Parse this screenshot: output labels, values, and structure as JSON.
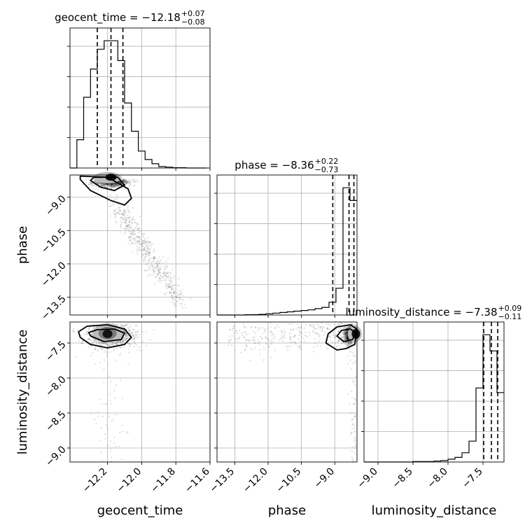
{
  "chart_data": {
    "type": "scatter",
    "subtype": "corner-plot",
    "parameters": [
      "geocent_time",
      "phase",
      "luminosity_distance"
    ],
    "axis_labels": {
      "x": [
        "geocent_time",
        "phase",
        "luminosity_distance"
      ],
      "y": [
        "phase",
        "luminosity_distance"
      ]
    },
    "ranges": {
      "geocent_time": [
        -12.42,
        -11.6
      ],
      "phase": [
        -14.3,
        -8.0
      ],
      "luminosity_distance": [
        -9.2,
        -7.2
      ]
    },
    "ticks": {
      "geocent_time": [
        -12.2,
        -12.0,
        -11.8,
        -11.6
      ],
      "phase": [
        -13.5,
        -12.0,
        -10.5,
        -9.0
      ],
      "luminosity_distance": [
        -9.0,
        -8.5,
        -8.0,
        -7.5
      ]
    },
    "tick_labels": {
      "geocent_time": [
        "−12.2",
        "−12.0",
        "−11.8",
        "−11.6"
      ],
      "phase": [
        "−13.5",
        "−12.0",
        "−10.5",
        "−9.0"
      ],
      "luminosity_distance": [
        "−9.0",
        "−8.5",
        "−8.0",
        "−7.5"
      ]
    },
    "titles": [
      {
        "param": "geocent_time",
        "base": "geocent_time = −12.18",
        "sup": "+0.07",
        "sub": "−0.08"
      },
      {
        "param": "phase",
        "base": "phase = −8.36",
        "sup": "+0.22",
        "sub": "−0.73"
      },
      {
        "param": "luminosity_distance",
        "base": "luminosity_distance = −7.38",
        "sup": "+0.09",
        "sub": "−0.11"
      }
    ],
    "quantiles": {
      "geocent_time": [
        -12.26,
        -12.18,
        -12.11
      ],
      "phase": [
        -9.09,
        -8.36,
        -8.14
      ],
      "luminosity_distance": [
        -7.49,
        -7.38,
        -7.29
      ]
    },
    "histograms": {
      "geocent_time": {
        "bin_edges": [
          -12.42,
          -12.38,
          -12.34,
          -12.3,
          -12.26,
          -12.22,
          -12.18,
          -12.14,
          -12.1,
          -12.06,
          -12.02,
          -11.98,
          -11.94,
          -11.9,
          -11.86,
          -11.82,
          -11.78,
          -11.74,
          -11.7,
          -11.66,
          -11.62
        ],
        "counts": [
          0,
          10,
          25,
          35,
          42,
          45,
          45,
          38,
          23,
          13,
          6,
          3,
          1.5,
          0.5,
          0.3,
          0.1,
          0.1,
          0,
          0,
          0
        ]
      },
      "phase": {
        "bin_edges": [
          -14.3,
          -13.985,
          -13.67,
          -13.355,
          -13.04,
          -12.725,
          -12.41,
          -12.095,
          -11.78,
          -11.465,
          -11.15,
          -10.835,
          -10.52,
          -10.205,
          -9.89,
          -9.575,
          -9.26,
          -8.945,
          -8.63,
          -8.315,
          -8.0
        ],
        "counts": [
          0,
          0,
          0,
          0,
          0.2,
          0.3,
          0.5,
          1,
          1.5,
          2,
          2.5,
          3,
          3.5,
          4,
          5,
          6,
          10,
          21,
          100,
          90
        ]
      },
      "luminosity_distance": {
        "bin_edges": [
          -9.2,
          -9.1,
          -9.0,
          -8.9,
          -8.8,
          -8.7,
          -8.6,
          -8.5,
          -8.4,
          -8.3,
          -8.2,
          -8.1,
          -8.0,
          -7.9,
          -7.8,
          -7.7,
          -7.6,
          -7.5,
          -7.4,
          -7.3,
          -7.2
        ],
        "counts": [
          0,
          0,
          0,
          0,
          0,
          0,
          0,
          0.2,
          0.2,
          0.2,
          0.4,
          0.6,
          1.2,
          2,
          4,
          9,
          32,
          55,
          48,
          30
        ]
      }
    },
    "contours": {
      "phase_vs_geocent_time": [
        [
          [
            -12.36,
            -8.2
          ],
          [
            -12.3,
            -8.7
          ],
          [
            -12.18,
            -9.15
          ],
          [
            -12.1,
            -9.35
          ],
          [
            -12.06,
            -9.05
          ],
          [
            -12.08,
            -8.62
          ],
          [
            -12.2,
            -8.1
          ],
          [
            -12.36,
            -8.05
          ]
        ],
        [
          [
            -12.3,
            -8.25
          ],
          [
            -12.24,
            -8.55
          ],
          [
            -12.16,
            -8.7
          ],
          [
            -12.1,
            -8.45
          ],
          [
            -12.14,
            -8.1
          ],
          [
            -12.28,
            -8.1
          ]
        ]
      ],
      "luminosity_distance_vs_geocent_time": [
        [
          [
            -12.36,
            -7.42
          ],
          [
            -12.3,
            -7.52
          ],
          [
            -12.2,
            -7.57
          ],
          [
            -12.1,
            -7.52
          ],
          [
            -12.06,
            -7.42
          ],
          [
            -12.1,
            -7.3
          ],
          [
            -12.2,
            -7.24
          ],
          [
            -12.32,
            -7.26
          ],
          [
            -12.37,
            -7.34
          ]
        ],
        [
          [
            -12.3,
            -7.4
          ],
          [
            -12.22,
            -7.48
          ],
          [
            -12.12,
            -7.45
          ],
          [
            -12.1,
            -7.36
          ],
          [
            -12.16,
            -7.3
          ],
          [
            -12.26,
            -7.31
          ],
          [
            -12.31,
            -7.35
          ]
        ]
      ],
      "luminosity_distance_vs_phase": [
        [
          [
            -9.4,
            -7.5
          ],
          [
            -8.9,
            -7.6
          ],
          [
            -8.5,
            -7.58
          ],
          [
            -8.1,
            -7.52
          ],
          [
            -8.0,
            -7.3
          ],
          [
            -8.3,
            -7.24
          ],
          [
            -8.9,
            -7.27
          ],
          [
            -9.3,
            -7.37
          ]
        ],
        [
          [
            -8.9,
            -7.4
          ],
          [
            -8.6,
            -7.48
          ],
          [
            -8.2,
            -7.45
          ],
          [
            -8.05,
            -7.36
          ],
          [
            -8.3,
            -7.3
          ],
          [
            -8.7,
            -7.32
          ]
        ]
      ]
    },
    "grid": true
  }
}
